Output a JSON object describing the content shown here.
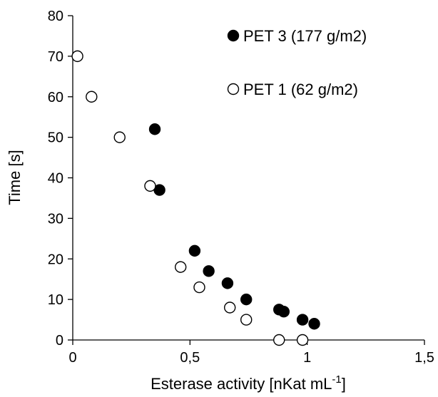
{
  "chart_data": {
    "type": "scatter",
    "xlabel": "Esterase activity [nKat mL",
    "xlabel_superscript": "-1",
    "xlabel_suffix": "]",
    "ylabel": "Time [s]",
    "xlim": [
      0,
      1.5
    ],
    "ylim": [
      0,
      80
    ],
    "x_ticks": [
      0,
      0.5,
      1,
      1.5
    ],
    "x_tick_labels": [
      "0",
      "0,5",
      "1",
      "1,5"
    ],
    "y_ticks": [
      0,
      10,
      20,
      30,
      40,
      50,
      60,
      70,
      80
    ],
    "y_tick_labels": [
      "0",
      "10",
      "20",
      "30",
      "40",
      "50",
      "60",
      "70",
      "80"
    ],
    "grid": false,
    "legend_position": "top-right",
    "series": [
      {
        "name": "PET 3 (177 g/m2)",
        "marker": "filled-circle",
        "color": "#000000",
        "points": [
          {
            "x": 0.35,
            "y": 52
          },
          {
            "x": 0.37,
            "y": 37
          },
          {
            "x": 0.52,
            "y": 22
          },
          {
            "x": 0.58,
            "y": 17
          },
          {
            "x": 0.66,
            "y": 14
          },
          {
            "x": 0.74,
            "y": 10
          },
          {
            "x": 0.88,
            "y": 7.5
          },
          {
            "x": 0.9,
            "y": 7
          },
          {
            "x": 0.98,
            "y": 5
          },
          {
            "x": 1.03,
            "y": 4
          }
        ]
      },
      {
        "name": "PET 1 (62 g/m2)",
        "marker": "open-circle",
        "color": "#000000",
        "points": [
          {
            "x": 0.02,
            "y": 70
          },
          {
            "x": 0.08,
            "y": 60
          },
          {
            "x": 0.2,
            "y": 50
          },
          {
            "x": 0.33,
            "y": 38
          },
          {
            "x": 0.46,
            "y": 18
          },
          {
            "x": 0.54,
            "y": 13
          },
          {
            "x": 0.67,
            "y": 8
          },
          {
            "x": 0.74,
            "y": 5
          },
          {
            "x": 0.88,
            "y": 0
          },
          {
            "x": 0.98,
            "y": 0
          }
        ]
      }
    ]
  }
}
